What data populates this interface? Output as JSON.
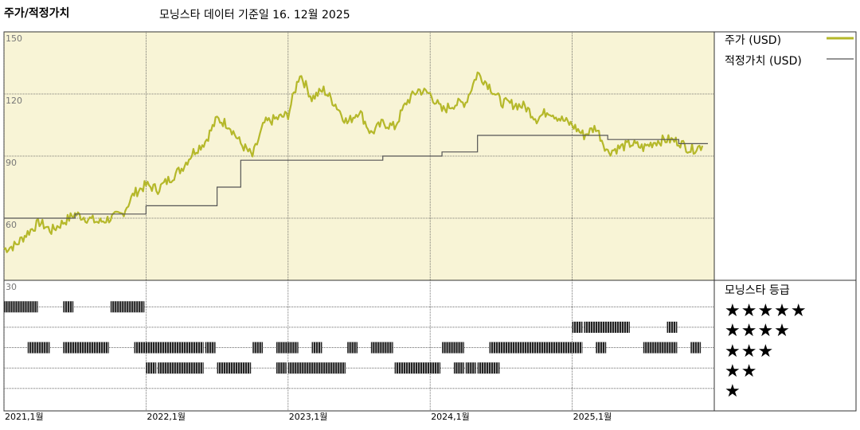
{
  "header": {
    "title": "주가/적정가치",
    "subtitle": "모닝스타 데이터 기준일 16. 12월 2025"
  },
  "rating_panel": {
    "title": "모닝스타 등급",
    "rows": [
      {
        "stars": 5,
        "label": "★★★★★"
      },
      {
        "stars": 4,
        "label": "★★★★"
      },
      {
        "stars": 3,
        "label": "★★★"
      },
      {
        "stars": 2,
        "label": "★★"
      },
      {
        "stars": 1,
        "label": "★"
      }
    ]
  },
  "colors": {
    "price": "#b5b82a",
    "fair_value": "#555555",
    "panel_bg": "#f8f4d6",
    "rating_bar": "#222222",
    "grid": "#555555"
  },
  "chart_data": {
    "type": "line",
    "title": "주가/적정가치",
    "subtitle": "모닝스타 데이터 기준일 16. 12월 2025",
    "x_axis": {
      "type": "date",
      "range": [
        "2021-01",
        "2026-01"
      ],
      "ticks": [
        {
          "date": "2021-01",
          "label": "2021,1월"
        },
        {
          "date": "2022-01",
          "label": "2022,1월"
        },
        {
          "date": "2023-01",
          "label": "2023,1월"
        },
        {
          "date": "2024-01",
          "label": "2024,1월"
        },
        {
          "date": "2025-01",
          "label": "2025,1월"
        }
      ]
    },
    "y_axis": {
      "ticks": [
        30,
        60,
        90,
        120,
        150
      ],
      "price_range": [
        30,
        150
      ]
    },
    "grid": true,
    "legend_position": "right",
    "series": [
      {
        "name": "주가 (USD)",
        "color": "#b5b82a",
        "points": [
          [
            "2021-01",
            45
          ],
          [
            "2021-02",
            47
          ],
          [
            "2021-03",
            53
          ],
          [
            "2021-04",
            58
          ],
          [
            "2021-05",
            54
          ],
          [
            "2021-06",
            58
          ],
          [
            "2021-07",
            62
          ],
          [
            "2021-08",
            60
          ],
          [
            "2021-09",
            58
          ],
          [
            "2021-10",
            60
          ],
          [
            "2021-11",
            62
          ],
          [
            "2021-12",
            72
          ],
          [
            "2022-01",
            76
          ],
          [
            "2022-02",
            74
          ],
          [
            "2022-03",
            79
          ],
          [
            "2022-04",
            84
          ],
          [
            "2022-05",
            92
          ],
          [
            "2022-06",
            97
          ],
          [
            "2022-07",
            108
          ],
          [
            "2022-08",
            105
          ],
          [
            "2022-09",
            96
          ],
          [
            "2022-10",
            90
          ],
          [
            "2022-11",
            106
          ],
          [
            "2022-12",
            108
          ],
          [
            "2023-01",
            110
          ],
          [
            "2023-02",
            130
          ],
          [
            "2023-03",
            118
          ],
          [
            "2023-04",
            122
          ],
          [
            "2023-05",
            115
          ],
          [
            "2023-06",
            106
          ],
          [
            "2023-07",
            112
          ],
          [
            "2023-08",
            101
          ],
          [
            "2023-09",
            106
          ],
          [
            "2023-10",
            104
          ],
          [
            "2023-11",
            116
          ],
          [
            "2023-12",
            122
          ],
          [
            "2024-01",
            120
          ],
          [
            "2024-02",
            112
          ],
          [
            "2024-03",
            115
          ],
          [
            "2024-04",
            116
          ],
          [
            "2024-05",
            130
          ],
          [
            "2024-06",
            124
          ],
          [
            "2024-07",
            116
          ],
          [
            "2024-08",
            115
          ],
          [
            "2024-09",
            114
          ],
          [
            "2024-10",
            108
          ],
          [
            "2024-11",
            112
          ],
          [
            "2024-12",
            108
          ],
          [
            "2025-01",
            105
          ],
          [
            "2025-02",
            100
          ],
          [
            "2025-03",
            104
          ],
          [
            "2025-04",
            92
          ],
          [
            "2025-05",
            94
          ],
          [
            "2025-06",
            96
          ],
          [
            "2025-07",
            94
          ],
          [
            "2025-08",
            97
          ],
          [
            "2025-09",
            98
          ],
          [
            "2025-10",
            97
          ],
          [
            "2025-11",
            93
          ],
          [
            "2025-12",
            95
          ]
        ]
      },
      {
        "name": "적정가치 (USD)",
        "color": "#555555",
        "step": true,
        "points": [
          [
            "2021-01",
            60
          ],
          [
            "2021-07",
            62
          ],
          [
            "2022-01",
            66
          ],
          [
            "2022-07",
            75
          ],
          [
            "2022-09",
            88
          ],
          [
            "2023-09",
            90
          ],
          [
            "2024-02",
            92
          ],
          [
            "2024-05",
            100
          ],
          [
            "2025-04",
            98
          ],
          [
            "2025-10",
            96
          ],
          [
            "2025-12",
            96
          ]
        ]
      }
    ],
    "rating_history": [
      {
        "stars": 5,
        "segments": [
          [
            "2021-01",
            "2021-04"
          ],
          [
            "2021-06",
            "2021-07"
          ],
          [
            "2021-10",
            "2022-01"
          ]
        ]
      },
      {
        "stars": 4,
        "segments": [
          [
            "2025-01",
            "2025-02"
          ],
          [
            "2025-02",
            "2025-06"
          ],
          [
            "2025-09",
            "2025-10"
          ]
        ]
      },
      {
        "stars": 3,
        "segments": [
          [
            "2021-03",
            "2021-05"
          ],
          [
            "2021-06",
            "2021-10"
          ],
          [
            "2021-12",
            "2022-06"
          ],
          [
            "2022-06",
            "2022-07"
          ],
          [
            "2022-10",
            "2022-11"
          ],
          [
            "2022-12",
            "2023-02"
          ],
          [
            "2023-03",
            "2023-04"
          ],
          [
            "2023-06",
            "2023-07"
          ],
          [
            "2023-08",
            "2023-10"
          ],
          [
            "2024-02",
            "2024-04"
          ],
          [
            "2024-06",
            "2025-02"
          ],
          [
            "2025-03",
            "2025-04"
          ],
          [
            "2025-07",
            "2025-10"
          ],
          [
            "2025-11",
            "2025-12"
          ]
        ]
      },
      {
        "stars": 2,
        "segments": [
          [
            "2022-01",
            "2022-02"
          ],
          [
            "2022-02",
            "2022-06"
          ],
          [
            "2022-07",
            "2022-10"
          ],
          [
            "2022-12",
            "2023-01"
          ],
          [
            "2023-01",
            "2023-06"
          ],
          [
            "2023-10",
            "2024-02"
          ],
          [
            "2024-03",
            "2024-04"
          ],
          [
            "2024-04",
            "2024-05"
          ],
          [
            "2024-05",
            "2024-07"
          ]
        ]
      },
      {
        "stars": 1,
        "segments": []
      }
    ]
  }
}
